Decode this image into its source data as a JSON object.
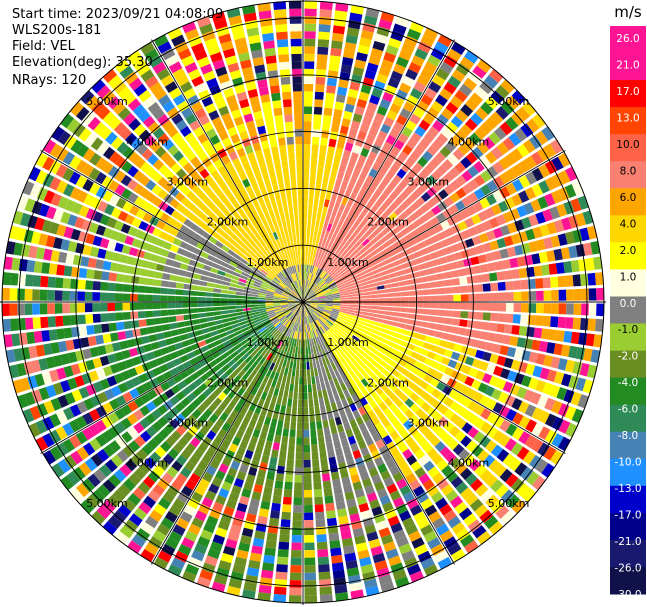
{
  "header": {
    "start_time": "Start time: 2023/09/21 04:08:09",
    "instrument": "WLS200s-181",
    "field": "Field: VEL",
    "elevation": "Elevation(deg): 35.30",
    "nrays": "NRays: 120"
  },
  "chart_data": {
    "type": "polar-ppi",
    "field": "VEL",
    "unit": "m/s",
    "nrays": 120,
    "elevation_deg": 35.3,
    "max_range_km": 5.3,
    "range_rings": [
      {
        "km": 1,
        "label": "1.00km"
      },
      {
        "km": 2,
        "label": "2.00km"
      },
      {
        "km": 3,
        "label": "3.00km"
      },
      {
        "km": 4,
        "label": "4.00km"
      },
      {
        "km": 5,
        "label": "5.00km"
      }
    ],
    "colorbar": {
      "unit_label": "m/s",
      "ticks": [
        "26.0",
        "21.0",
        "17.0",
        "13.0",
        "10.0",
        "8.0",
        "6.0",
        "4.0",
        "2.0",
        "1.0",
        "0.0",
        "-1.0",
        "-2.0",
        "-4.0",
        "-6.0",
        "-8.0",
        "-10.0",
        "-13.0",
        "-17.0",
        "-21.0",
        "-26.0",
        "-30.0"
      ],
      "colors": [
        "#ff1493",
        "#ff1493",
        "#ff0000",
        "#ff4500",
        "#ff6347",
        "#fa8072",
        "#ffa500",
        "#ffd700",
        "#ffff00",
        "#ffffe0",
        "#808080",
        "#9acd32",
        "#6b8e23",
        "#228b22",
        "#2e8b57",
        "#4682b4",
        "#1e90ff",
        "#0000cd",
        "#00008b",
        "#191970",
        "#10104a"
      ]
    },
    "regions": [
      {
        "name": "near-north",
        "az_deg": [
          280,
          360
        ],
        "color": "#808080"
      },
      {
        "name": "north",
        "az_deg": [
          320,
          45
        ],
        "color": "#ffd700"
      },
      {
        "name": "northeast",
        "az_deg": [
          20,
          110
        ],
        "color": "#fa8072"
      },
      {
        "name": "east",
        "az_deg": [
          80,
          150
        ],
        "color": "#ffff00"
      },
      {
        "name": "south",
        "az_deg": [
          170,
          220
        ],
        "color": "#6b8e23"
      },
      {
        "name": "west",
        "az_deg": [
          220,
          290
        ],
        "color": "#228b22"
      },
      {
        "name": "far-range-noise",
        "range_km": [
          3.5,
          5.3
        ],
        "color": "mixed"
      }
    ]
  }
}
